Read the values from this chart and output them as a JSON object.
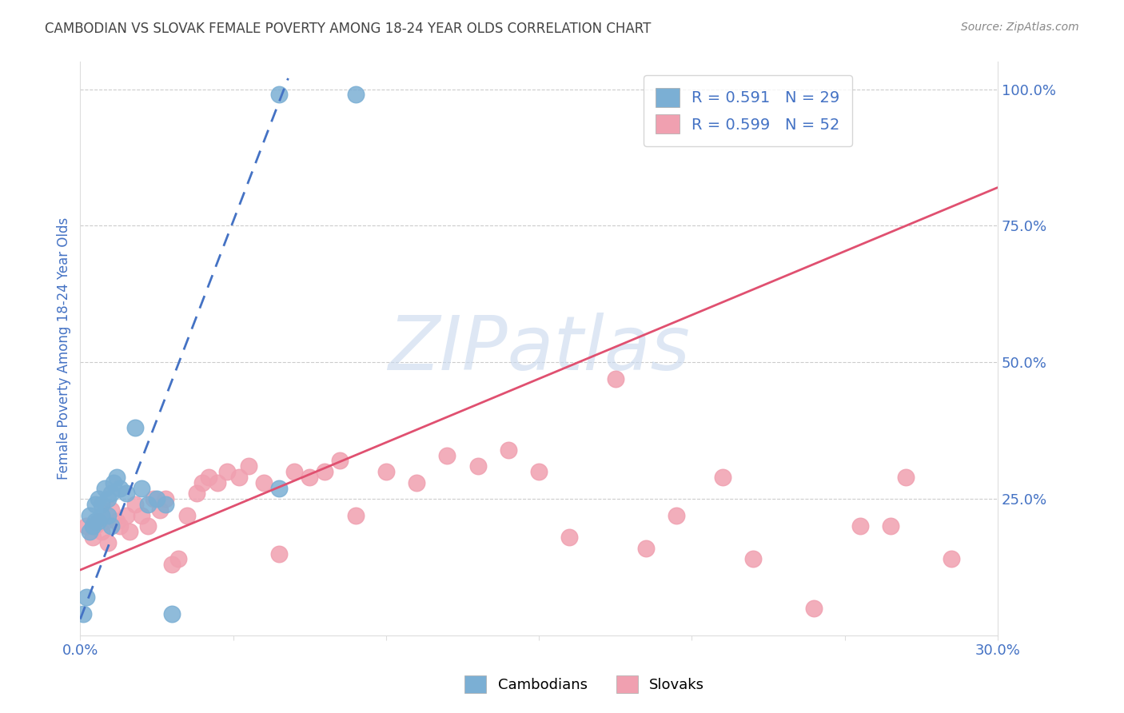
{
  "title": "CAMBODIAN VS SLOVAK FEMALE POVERTY AMONG 18-24 YEAR OLDS CORRELATION CHART",
  "source": "Source: ZipAtlas.com",
  "ylabel": "Female Poverty Among 18-24 Year Olds",
  "cambodian_color": "#7bafd4",
  "slovak_color": "#f0a0b0",
  "cambodian_R": 0.591,
  "cambodian_N": 29,
  "slovak_R": 0.599,
  "slovak_N": 52,
  "watermark_text": "ZIPatlas",
  "watermark_color": "#c8d8ee",
  "cambodian_scatter_x": [
    0.001,
    0.002,
    0.003,
    0.003,
    0.004,
    0.005,
    0.005,
    0.006,
    0.006,
    0.007,
    0.007,
    0.008,
    0.009,
    0.009,
    0.01,
    0.01,
    0.011,
    0.012,
    0.013,
    0.015,
    0.018,
    0.02,
    0.022,
    0.025,
    0.028,
    0.03,
    0.065,
    0.065,
    0.09
  ],
  "cambodian_scatter_y": [
    0.04,
    0.07,
    0.19,
    0.22,
    0.2,
    0.21,
    0.24,
    0.21,
    0.25,
    0.22,
    0.24,
    0.27,
    0.22,
    0.25,
    0.2,
    0.26,
    0.28,
    0.29,
    0.27,
    0.26,
    0.38,
    0.27,
    0.24,
    0.25,
    0.24,
    0.04,
    0.27,
    0.99,
    0.99
  ],
  "slovak_scatter_x": [
    0.002,
    0.004,
    0.005,
    0.006,
    0.007,
    0.008,
    0.009,
    0.01,
    0.012,
    0.013,
    0.015,
    0.016,
    0.018,
    0.02,
    0.022,
    0.024,
    0.026,
    0.028,
    0.03,
    0.032,
    0.035,
    0.038,
    0.04,
    0.042,
    0.045,
    0.048,
    0.052,
    0.055,
    0.06,
    0.065,
    0.07,
    0.075,
    0.08,
    0.085,
    0.09,
    0.1,
    0.11,
    0.12,
    0.13,
    0.14,
    0.15,
    0.16,
    0.175,
    0.185,
    0.195,
    0.21,
    0.22,
    0.24,
    0.255,
    0.265,
    0.27,
    0.285
  ],
  "slovak_scatter_y": [
    0.2,
    0.18,
    0.2,
    0.21,
    0.19,
    0.21,
    0.17,
    0.23,
    0.21,
    0.2,
    0.22,
    0.19,
    0.24,
    0.22,
    0.2,
    0.25,
    0.23,
    0.25,
    0.13,
    0.14,
    0.22,
    0.26,
    0.28,
    0.29,
    0.28,
    0.3,
    0.29,
    0.31,
    0.28,
    0.15,
    0.3,
    0.29,
    0.3,
    0.32,
    0.22,
    0.3,
    0.28,
    0.33,
    0.31,
    0.34,
    0.3,
    0.18,
    0.47,
    0.16,
    0.22,
    0.29,
    0.14,
    0.05,
    0.2,
    0.2,
    0.29,
    0.14
  ],
  "xlim": [
    0.0,
    0.3
  ],
  "ylim": [
    0.0,
    1.05
  ],
  "cam_line_x0": 0.0,
  "cam_line_y0": 0.03,
  "cam_line_x1": 0.068,
  "cam_line_y1": 1.02,
  "slo_line_x0": 0.0,
  "slo_line_y0": 0.12,
  "slo_line_x1": 0.3,
  "slo_line_y1": 0.82,
  "grid_color": "#cccccc",
  "bg_color": "#ffffff",
  "title_color": "#444444",
  "axis_label_color": "#4472c4",
  "right_tick_color": "#4472c4",
  "x_tick_color": "#4472c4"
}
